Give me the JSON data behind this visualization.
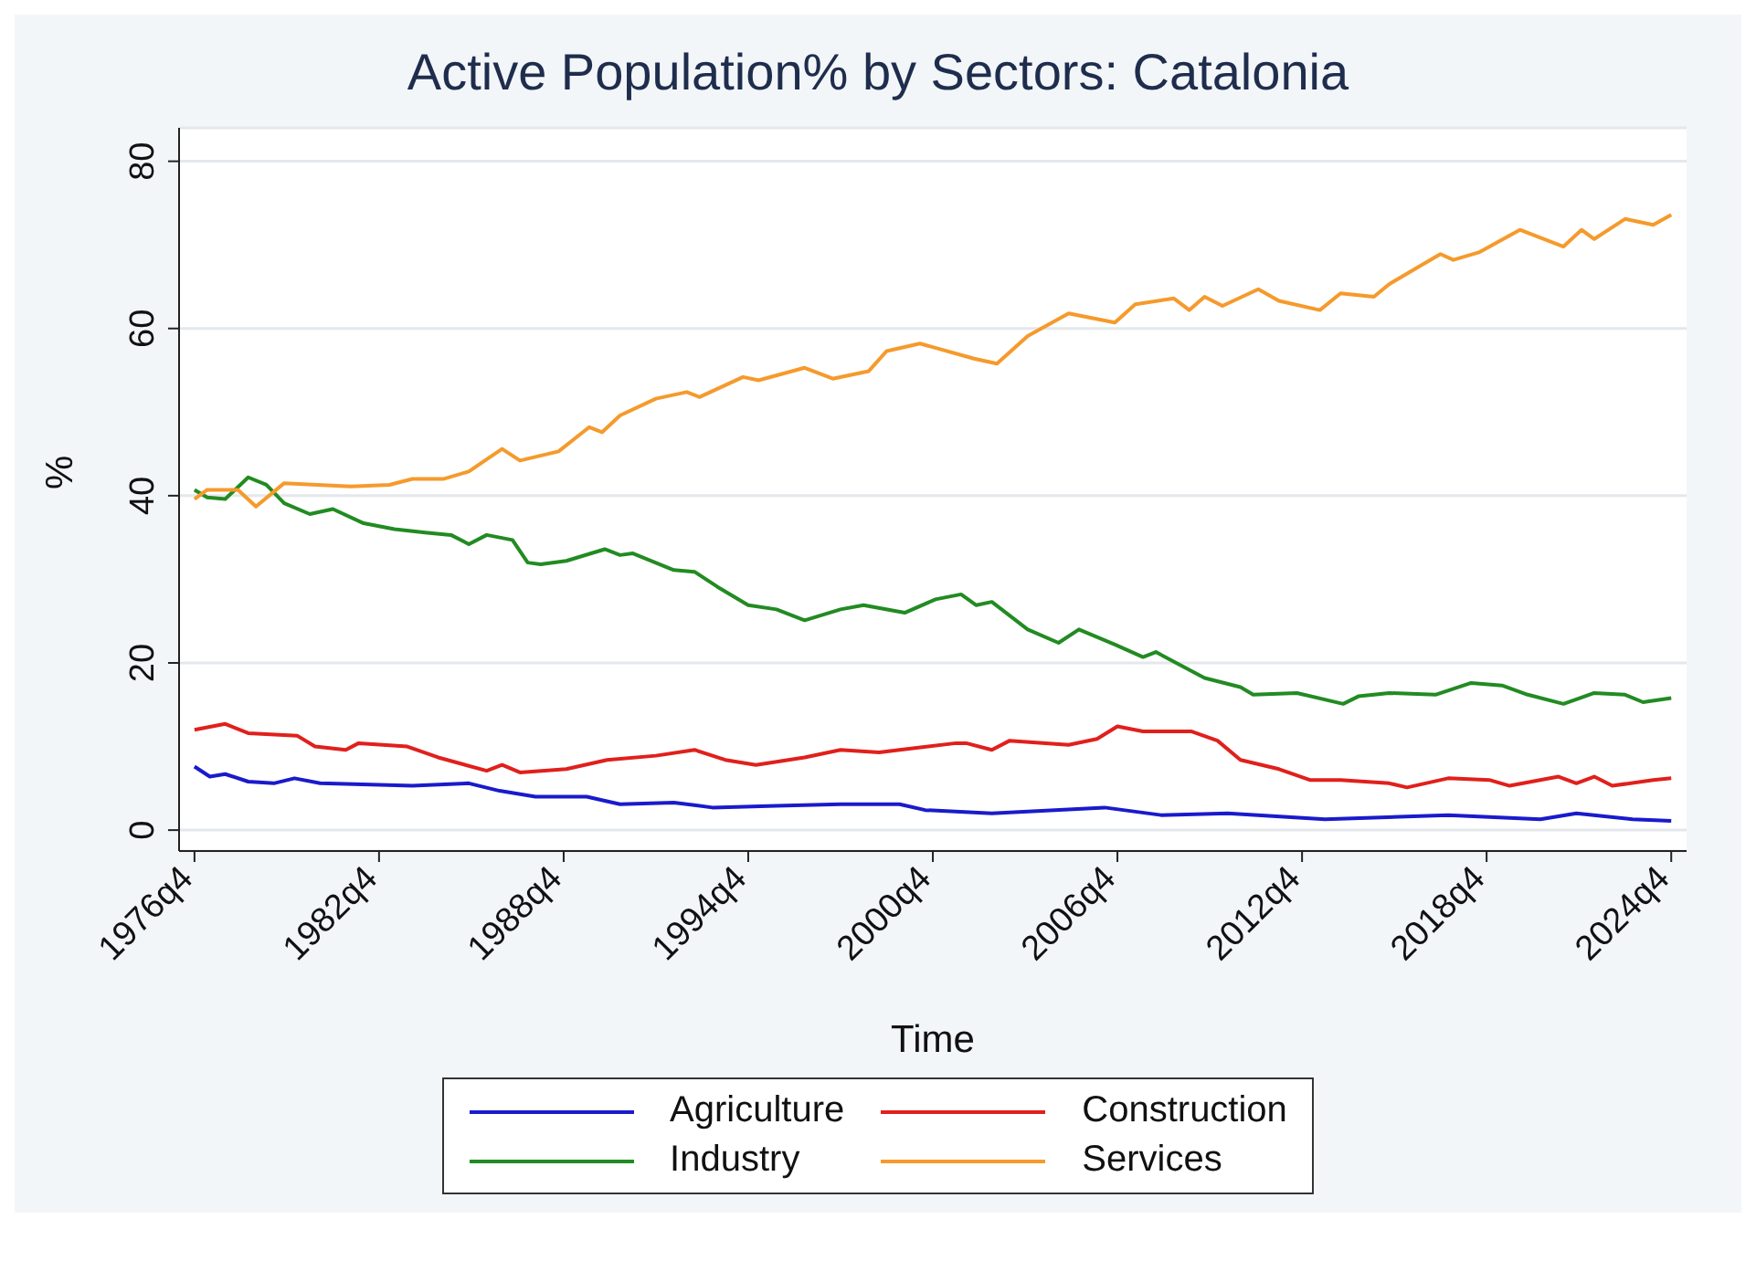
{
  "chart_data": {
    "type": "line",
    "title": "Active Population% by Sectors: Catalonia",
    "xlabel": "Time",
    "ylabel": "%",
    "xlim": [
      "1976-04",
      "2025-04"
    ],
    "xticks": [
      {
        "value": "1976-10",
        "label": "1976q4"
      },
      {
        "value": "1982-10",
        "label": "1982q4"
      },
      {
        "value": "1988-10",
        "label": "1988q4"
      },
      {
        "value": "1994-10",
        "label": "1994q4"
      },
      {
        "value": "2000-10",
        "label": "2000q4"
      },
      {
        "value": "2006-10",
        "label": "2006q4"
      },
      {
        "value": "2012-10",
        "label": "2012q4"
      },
      {
        "value": "2018-10",
        "label": "2018q4"
      },
      {
        "value": "2024-10",
        "label": "2024q4"
      }
    ],
    "ylim": [
      -2.5,
      84
    ],
    "yticks": [
      0,
      20,
      40,
      60,
      80
    ],
    "grid": "y",
    "legend": "bottom",
    "marker": "none",
    "line_style": "solid",
    "series": [
      {
        "name": "Agriculture",
        "color": "#1a1acc",
        "x": [
          "1976-10",
          "1977-04",
          "1977-10",
          "1978-07",
          "1979-05",
          "1980-01",
          "1980-11",
          "1983-11",
          "1985-09",
          "1986-09",
          "1987-11",
          "1989-07",
          "1990-08",
          "1992-05",
          "1993-08",
          "1995-09",
          "1997-10",
          "1999-09",
          "2000-07",
          "2002-09",
          "2006-05",
          "2008-03",
          "2010-05",
          "2013-07",
          "2017-07",
          "2020-07",
          "2021-09",
          "2023-07",
          "2024-10"
        ],
        "values": [
          7.6,
          6.4,
          6.7,
          5.8,
          5.6,
          6.2,
          5.6,
          5.3,
          5.6,
          4.7,
          4,
          4,
          3.1,
          3.3,
          2.7,
          2.9,
          3.1,
          3.1,
          2.4,
          2,
          2.7,
          1.8,
          2,
          1.3,
          1.8,
          1.3,
          2,
          1.3,
          1.1
        ]
      },
      {
        "name": "Construction",
        "color": "#e0201c",
        "x": [
          "1976-10",
          "1977-10",
          "1978-07",
          "1980-02",
          "1980-09",
          "1981-09",
          "1982-02",
          "1983-09",
          "1984-09",
          "1986-04",
          "1986-10",
          "1987-05",
          "1988-11",
          "1990-03",
          "1991-10",
          "1993-01",
          "1994-01",
          "1995-01",
          "1996-08",
          "1997-10",
          "1999-01",
          "1999-09",
          "2001-07",
          "2001-11",
          "2002-09",
          "2003-04",
          "2005-03",
          "2006-02",
          "2006-10",
          "2007-08",
          "2009-03",
          "2010-01",
          "2010-10",
          "2012-01",
          "2013-01",
          "2014-01",
          "2015-08",
          "2016-03",
          "2017-07",
          "2018-11",
          "2019-07",
          "2021-02",
          "2021-09",
          "2022-04",
          "2022-11",
          "2024-03",
          "2024-10"
        ],
        "values": [
          12,
          12.7,
          11.6,
          11.3,
          10,
          9.6,
          10.4,
          10,
          8.7,
          7.1,
          7.8,
          6.9,
          7.3,
          8.4,
          8.9,
          9.6,
          8.4,
          7.8,
          8.7,
          9.6,
          9.3,
          9.6,
          10.4,
          10.4,
          9.6,
          10.7,
          10.2,
          10.9,
          12.4,
          11.8,
          11.8,
          10.7,
          8.4,
          7.3,
          6,
          6,
          5.6,
          5.1,
          6.2,
          6,
          5.3,
          6.4,
          5.6,
          6.4,
          5.3,
          6,
          6.2
        ]
      },
      {
        "name": "Industry",
        "color": "#228b22",
        "x": [
          "1976-10",
          "1977-03",
          "1977-10",
          "1978-07",
          "1979-02",
          "1979-09",
          "1980-07",
          "1981-04",
          "1982-04",
          "1983-04",
          "1984-04",
          "1985-02",
          "1985-09",
          "1986-04",
          "1987-02",
          "1987-08",
          "1988-01",
          "1988-11",
          "1990-02",
          "1990-08",
          "1991-01",
          "1992-05",
          "1993-01",
          "1993-10",
          "1994-10",
          "1995-09",
          "1996-08",
          "1997-10",
          "1998-07",
          "1999-11",
          "2000-11",
          "2001-09",
          "2002-03",
          "2002-09",
          "2003-11",
          "2004-11",
          "2005-07",
          "2006-09",
          "2007-08",
          "2008-01",
          "2009-08",
          "2010-10",
          "2011-03",
          "2012-08",
          "2014-02",
          "2014-08",
          "2015-08",
          "2017-02",
          "2018-04",
          "2019-04",
          "2020-02",
          "2021-04",
          "2022-04",
          "2023-04",
          "2023-11",
          "2024-10"
        ],
        "values": [
          40.7,
          39.8,
          39.6,
          42.2,
          41.3,
          39.1,
          37.8,
          38.4,
          36.7,
          36,
          35.6,
          35.3,
          34.2,
          35.3,
          34.7,
          32,
          31.8,
          32.2,
          33.6,
          32.9,
          33.1,
          31.1,
          30.9,
          29.1,
          26.9,
          26.4,
          25.1,
          26.4,
          26.9,
          26,
          27.6,
          28.2,
          26.9,
          27.3,
          24,
          22.4,
          24,
          22.2,
          20.7,
          21.3,
          18.2,
          17.1,
          16.2,
          16.4,
          15.1,
          16,
          16.4,
          16.2,
          17.6,
          17.3,
          16.2,
          15.1,
          16.4,
          16.2,
          15.3,
          15.8
        ]
      },
      {
        "name": "Services",
        "color": "#f59a2c",
        "x": [
          "1976-10",
          "1977-03",
          "1978-03",
          "1978-10",
          "1979-09",
          "1981-11",
          "1983-02",
          "1983-11",
          "1984-11",
          "1985-09",
          "1986-10",
          "1987-05",
          "1988-08",
          "1989-08",
          "1990-01",
          "1990-08",
          "1991-10",
          "1992-10",
          "1993-03",
          "1994-08",
          "1995-02",
          "1996-08",
          "1997-07",
          "1998-09",
          "1999-04",
          "2000-05",
          "2002-02",
          "2002-11",
          "2003-11",
          "2005-03",
          "2006-09",
          "2007-05",
          "2008-08",
          "2009-02",
          "2009-08",
          "2010-03",
          "2011-05",
          "2012-01",
          "2013-05",
          "2014-01",
          "2015-02",
          "2015-08",
          "2016-07",
          "2017-04",
          "2017-09",
          "2018-07",
          "2019-11",
          "2021-04",
          "2021-11",
          "2022-04",
          "2023-04",
          "2024-03",
          "2024-10"
        ],
        "values": [
          39.6,
          40.7,
          40.7,
          38.7,
          41.5,
          41.1,
          41.3,
          42,
          42,
          42.9,
          45.6,
          44.2,
          45.3,
          48.2,
          47.6,
          49.6,
          51.6,
          52.4,
          51.8,
          54.2,
          53.8,
          55.3,
          54,
          54.9,
          57.3,
          58.2,
          56.4,
          55.8,
          59.1,
          61.8,
          60.7,
          62.9,
          63.6,
          62.2,
          63.8,
          62.7,
          64.7,
          63.3,
          62.2,
          64.2,
          63.8,
          65.3,
          67.3,
          68.9,
          68.2,
          69.1,
          71.8,
          69.8,
          71.8,
          70.7,
          73.1,
          72.4,
          73.6
        ]
      }
    ]
  }
}
